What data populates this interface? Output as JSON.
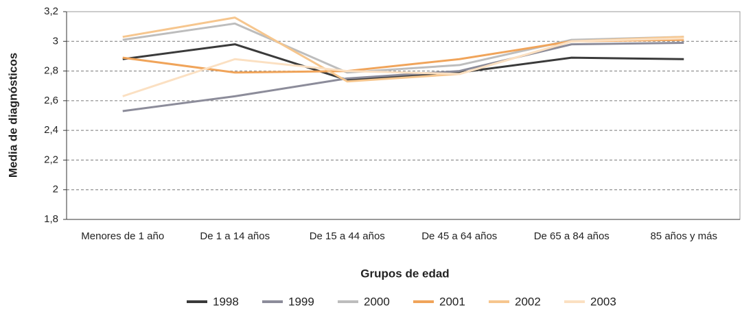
{
  "chart_data": {
    "type": "line",
    "x_label": "Grupos de edad",
    "y_label": "Media de diagnósticos",
    "categories": [
      "Menores de 1 año",
      "De 1 a 14 años",
      "De 15 a 44 años",
      "De 45 a 64 años",
      "De 65 a 84 años",
      "85 años y más"
    ],
    "series": [
      {
        "name": "1998",
        "color": "#3a3a3a",
        "values": [
          2.88,
          2.98,
          2.74,
          2.79,
          2.89,
          2.88
        ]
      },
      {
        "name": "1999",
        "color": "#8c8c9a",
        "values": [
          2.53,
          2.63,
          2.75,
          2.8,
          2.98,
          2.99
        ]
      },
      {
        "name": "2000",
        "color": "#bdbdbd",
        "values": [
          3.01,
          3.12,
          2.79,
          2.84,
          3.01,
          3.03
        ]
      },
      {
        "name": "2001",
        "color": "#f0a45a",
        "values": [
          2.89,
          2.79,
          2.8,
          2.88,
          3.0,
          3.01
        ]
      },
      {
        "name": "2002",
        "color": "#f6c68e",
        "values": [
          3.03,
          3.16,
          2.73,
          2.78,
          3.0,
          3.03
        ]
      },
      {
        "name": "2003",
        "color": "#fbe0c2",
        "values": [
          2.63,
          2.88,
          2.8,
          2.78,
          3.0,
          3.02
        ]
      }
    ],
    "ylim": [
      1.8,
      3.2
    ],
    "yticks": [
      {
        "value": 1.8,
        "label": "1,8"
      },
      2,
      {
        "value": 2.2,
        "label": "2,2"
      },
      {
        "value": 2.4,
        "label": "2,4"
      },
      {
        "value": 2.6,
        "label": "2,6"
      },
      {
        "value": 2.8,
        "label": "2,8"
      },
      3,
      {
        "value": 3.2,
        "label": "3,2"
      }
    ],
    "grid": true
  }
}
